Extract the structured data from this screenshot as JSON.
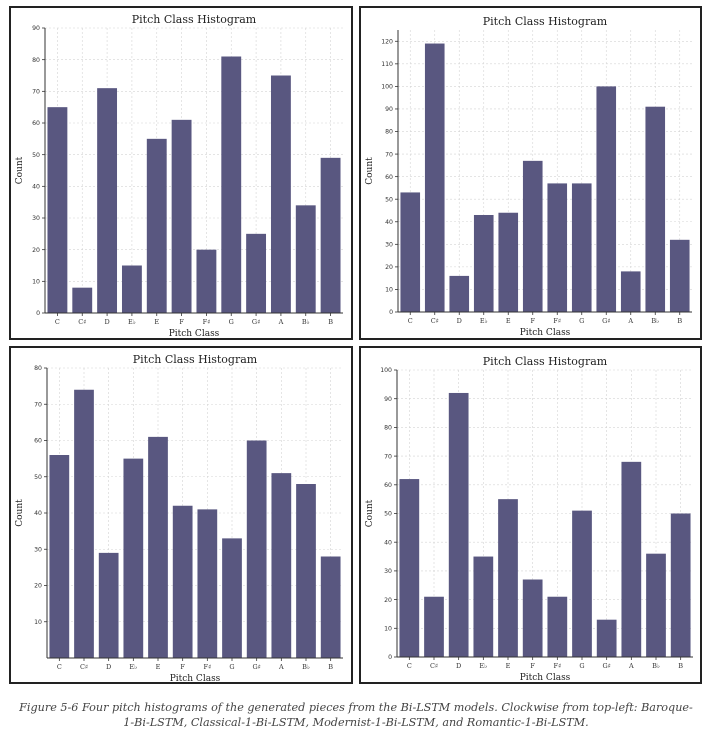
{
  "caption": "Figure 5-6 Four pitch histograms of the generated pieces from the Bi-LSTM models. Clockwise from top-left: Baroque-1-Bi-LSTM, Classical-1-Bi-LSTM, Modernist-1-Bi-LSTM, and Romantic-1-Bi-LSTM.",
  "colors": {
    "bar": "#595780",
    "grid": "#d4d4d4",
    "axis": "#333333"
  },
  "chart_data": [
    {
      "type": "bar",
      "title": "Pitch Class Histogram",
      "xlabel": "Pitch Class",
      "ylabel": "Count",
      "categories": [
        "C",
        "C♯",
        "D",
        "E♭",
        "E",
        "F",
        "F♯",
        "G",
        "G♯",
        "A",
        "B♭",
        "B"
      ],
      "values": [
        65,
        8,
        71,
        15,
        55,
        61,
        20,
        81,
        25,
        75,
        34,
        49
      ],
      "ylim": [
        0,
        90
      ],
      "yticks": [
        0,
        10,
        20,
        30,
        40,
        50,
        60,
        70,
        80,
        90
      ],
      "grid": true
    },
    {
      "type": "bar",
      "title": "Pitch Class Histogram",
      "xlabel": "Pitch Class",
      "ylabel": "Count",
      "categories": [
        "C",
        "C♯",
        "D",
        "E♭",
        "E",
        "F",
        "F♯",
        "G",
        "G♯",
        "A",
        "B♭",
        "B"
      ],
      "values": [
        53,
        119,
        16,
        43,
        44,
        67,
        57,
        57,
        100,
        18,
        91,
        32
      ],
      "ylim": [
        0,
        125
      ],
      "yticks": [
        0,
        10,
        20,
        30,
        40,
        50,
        60,
        70,
        80,
        90,
        100,
        110,
        120
      ],
      "grid": true
    },
    {
      "type": "bar",
      "title": "Pitch Class Histogram",
      "xlabel": "Pitch Class",
      "ylabel": "Count",
      "categories": [
        "C",
        "C♯",
        "D",
        "E♭",
        "E",
        "F",
        "F♯",
        "G",
        "G♯",
        "A",
        "B♭",
        "B"
      ],
      "values": [
        56,
        74,
        29,
        55,
        61,
        42,
        41,
        33,
        60,
        51,
        48,
        28
      ],
      "ylim": [
        0,
        80
      ],
      "yticks": [
        10,
        20,
        30,
        40,
        50,
        60,
        70,
        80
      ],
      "grid": true
    },
    {
      "type": "bar",
      "title": "Pitch Class Histogram",
      "xlabel": "Pitch Class",
      "ylabel": "Count",
      "categories": [
        "C",
        "C♯",
        "D",
        "E♭",
        "E",
        "F",
        "F♯",
        "G",
        "G♯",
        "A",
        "B♭",
        "B"
      ],
      "values": [
        62,
        21,
        92,
        35,
        55,
        27,
        21,
        51,
        13,
        68,
        36,
        50
      ],
      "ylim": [
        0,
        100
      ],
      "yticks": [
        0,
        10,
        20,
        30,
        40,
        50,
        60,
        70,
        80,
        90,
        100
      ],
      "grid": true
    }
  ]
}
